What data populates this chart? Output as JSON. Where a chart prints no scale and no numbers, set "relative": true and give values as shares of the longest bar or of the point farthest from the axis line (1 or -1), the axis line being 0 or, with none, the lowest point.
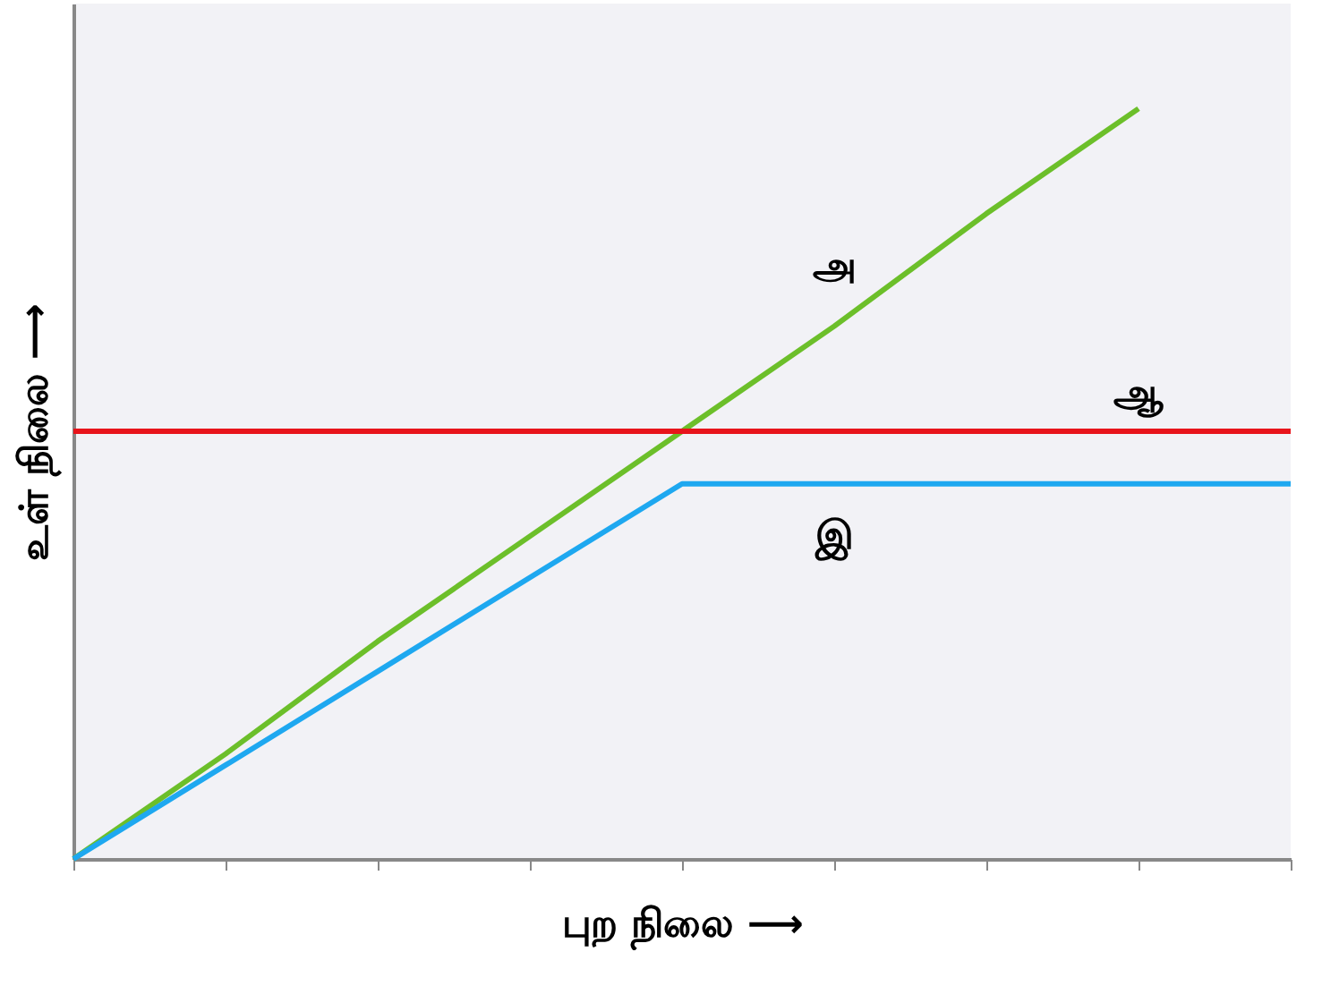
{
  "chart_data": {
    "type": "line",
    "relative": true,
    "xlabel": "புற நிலை ⟶",
    "ylabel": "உள் நிலை ⟶",
    "categories": [
      null,
      null,
      null,
      null,
      null,
      null,
      null,
      null,
      null
    ],
    "series": [
      {
        "name": "அ",
        "color": "#6cbf2a",
        "values": [
          0,
          0.14,
          0.29,
          0.43,
          0.57,
          0.71,
          0.86,
          1,
          null
        ]
      },
      {
        "name": "ஆ",
        "color": "#e8141b",
        "values": [
          0.57,
          0.57,
          0.57,
          0.57,
          0.57,
          0.57,
          0.57,
          0.57,
          0.57
        ]
      },
      {
        "name": "இ",
        "color": "#1ea8f0",
        "values": [
          0,
          0.125,
          0.25,
          0.375,
          0.5,
          0.5,
          0.5,
          0.5,
          0.5
        ]
      }
    ],
    "grid": false,
    "legend": false,
    "marker": "none",
    "line_style": "solid"
  }
}
